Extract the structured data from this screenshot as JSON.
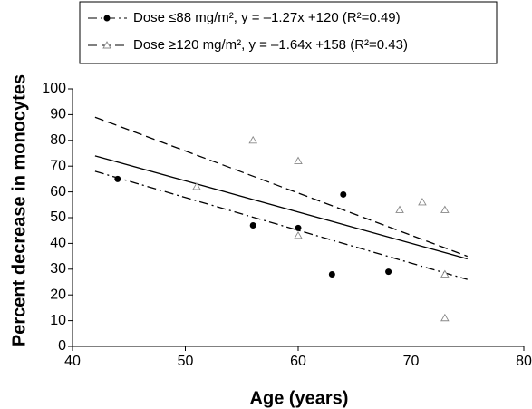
{
  "chart_data": {
    "type": "scatter",
    "x_label": "Age (years)",
    "y_label": "Percent decrease in monocytes",
    "xlim": [
      40,
      80
    ],
    "xticks": [
      40,
      50,
      60,
      70,
      80
    ],
    "ylim": [
      0,
      100
    ],
    "yticks": [
      0,
      10,
      20,
      30,
      40,
      50,
      60,
      70,
      80,
      90,
      100
    ],
    "series": [
      {
        "name": "Dose ≤88 mg/m², y = –1.27x +120 (R²=0.49)",
        "marker": "circle",
        "color": "#000000",
        "line_style": "dash-dot",
        "x": [
          44,
          56,
          60,
          64,
          63,
          68
        ],
        "values": [
          65,
          47,
          46,
          59,
          28,
          29
        ]
      },
      {
        "name": "Dose ≥120 mg/m², y = –1.64x +158 (R²=0.43)",
        "marker": "triangle",
        "color": "#888888",
        "line_style": "dashed",
        "x": [
          51,
          56,
          60,
          60,
          69,
          71,
          73,
          73,
          73
        ],
        "values": [
          62,
          80,
          72,
          43,
          53,
          56,
          53,
          28,
          11
        ]
      }
    ],
    "fit_lines": [
      {
        "style": "dash-dot",
        "x": [
          42,
          75
        ],
        "values": [
          68,
          26
        ]
      },
      {
        "style": "dashed",
        "x": [
          42,
          75
        ],
        "values": [
          89,
          35
        ]
      },
      {
        "style": "solid",
        "x": [
          42,
          75
        ],
        "values": [
          74,
          34
        ]
      }
    ]
  }
}
